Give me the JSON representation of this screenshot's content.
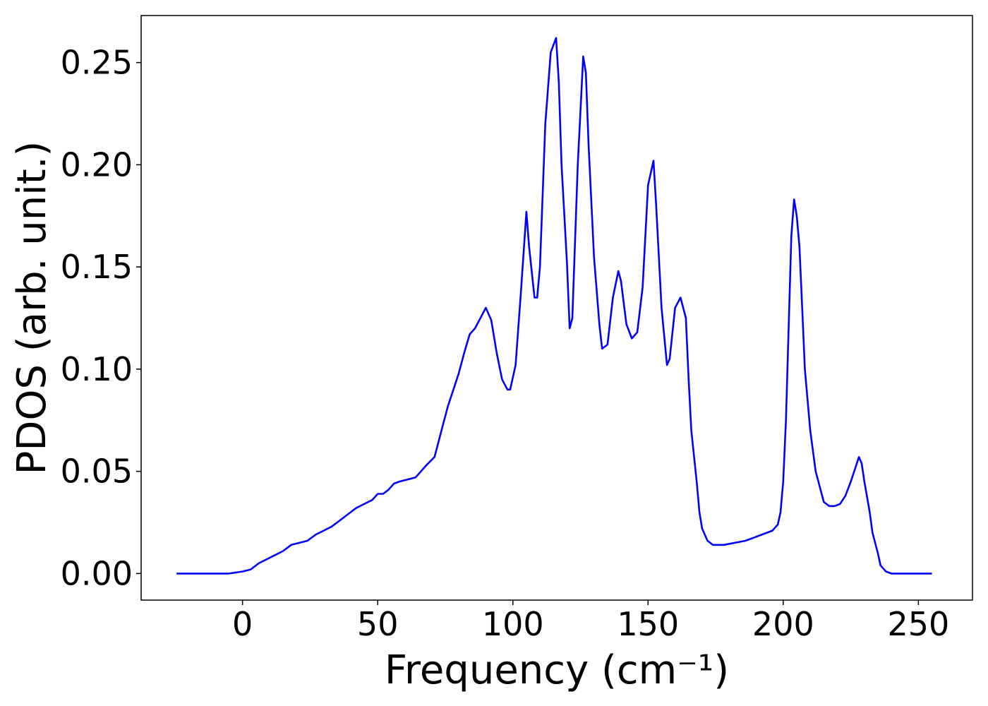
{
  "chart_data": {
    "type": "line",
    "xlabel": "Frequency (cm⁻¹)",
    "ylabel": "PDOS (arb. unit.)",
    "xlim": [
      -37.5,
      270
    ],
    "ylim": [
      -0.013,
      0.273
    ],
    "xticks": [
      0,
      50,
      100,
      150,
      200,
      250
    ],
    "yticks": [
      0.0,
      0.05,
      0.1,
      0.15,
      0.2,
      0.25
    ],
    "xtick_labels": [
      "0",
      "50",
      "100",
      "150",
      "200",
      "250"
    ],
    "ytick_labels": [
      "0.00",
      "0.05",
      "0.10",
      "0.15",
      "0.20",
      "0.25"
    ],
    "grid": false,
    "series": [
      {
        "color": "#0000ff",
        "x": [
          -24.4,
          -5,
          0,
          3,
          6,
          9,
          12,
          15,
          18,
          21,
          24,
          27,
          30,
          33,
          36,
          39,
          42,
          45,
          48,
          50,
          52,
          54,
          56,
          58,
          61,
          64,
          66,
          68,
          71,
          72,
          74,
          76,
          78,
          80,
          82,
          84,
          86,
          88,
          90,
          92,
          94,
          96,
          98,
          99,
          101,
          103,
          105,
          106,
          108,
          109,
          110,
          112,
          114,
          116,
          117,
          118,
          120,
          121,
          122,
          124,
          126,
          127,
          128,
          130,
          132,
          133,
          135,
          137,
          139,
          140,
          142,
          144,
          146,
          148,
          150,
          152,
          153,
          155,
          157,
          158,
          160,
          162,
          164,
          165,
          166,
          168,
          169,
          170,
          172,
          174,
          178,
          182,
          186,
          190,
          194,
          196,
          198,
          199,
          200,
          201,
          202,
          203,
          204,
          205,
          206,
          207,
          208,
          210,
          212,
          214,
          215,
          217,
          219,
          221,
          223,
          225,
          227,
          228,
          229,
          230,
          232,
          233,
          235,
          236,
          238,
          240,
          255
        ],
        "y": [
          0.0,
          0.0,
          0.001,
          0.002,
          0.005,
          0.007,
          0.009,
          0.011,
          0.014,
          0.015,
          0.016,
          0.019,
          0.021,
          0.023,
          0.026,
          0.029,
          0.032,
          0.034,
          0.036,
          0.039,
          0.039,
          0.041,
          0.044,
          0.045,
          0.046,
          0.047,
          0.05,
          0.053,
          0.057,
          0.062,
          0.072,
          0.082,
          0.09,
          0.098,
          0.108,
          0.117,
          0.12,
          0.125,
          0.13,
          0.124,
          0.108,
          0.095,
          0.09,
          0.09,
          0.102,
          0.138,
          0.177,
          0.16,
          0.135,
          0.135,
          0.15,
          0.22,
          0.255,
          0.262,
          0.24,
          0.2,
          0.152,
          0.12,
          0.125,
          0.2,
          0.253,
          0.245,
          0.21,
          0.155,
          0.122,
          0.11,
          0.112,
          0.135,
          0.148,
          0.143,
          0.122,
          0.115,
          0.118,
          0.14,
          0.19,
          0.202,
          0.18,
          0.13,
          0.102,
          0.105,
          0.13,
          0.135,
          0.125,
          0.095,
          0.07,
          0.045,
          0.03,
          0.022,
          0.016,
          0.014,
          0.014,
          0.015,
          0.016,
          0.018,
          0.02,
          0.021,
          0.024,
          0.03,
          0.045,
          0.075,
          0.12,
          0.165,
          0.183,
          0.175,
          0.16,
          0.13,
          0.1,
          0.07,
          0.05,
          0.04,
          0.035,
          0.033,
          0.033,
          0.034,
          0.038,
          0.045,
          0.053,
          0.057,
          0.054,
          0.045,
          0.03,
          0.02,
          0.01,
          0.004,
          0.001,
          0.0,
          0.0
        ]
      }
    ]
  }
}
